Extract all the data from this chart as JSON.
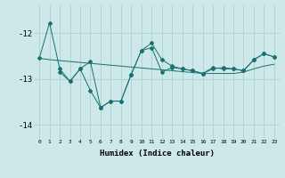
{
  "xlabel": "Humidex (Indice chaleur)",
  "xlim": [
    -0.5,
    23.5
  ],
  "ylim": [
    -14.3,
    -11.4
  ],
  "yticks": [
    -14,
    -13,
    -12
  ],
  "xticks": [
    0,
    1,
    2,
    3,
    4,
    5,
    6,
    7,
    8,
    9,
    10,
    11,
    12,
    13,
    14,
    15,
    16,
    17,
    18,
    19,
    20,
    21,
    22,
    23
  ],
  "bg_color": "#cce8e8",
  "line_color": "#1a7070",
  "grid_color": "#aacccc",
  "series1_x": [
    0,
    1,
    2,
    3,
    4,
    5,
    6,
    7,
    8,
    9,
    10,
    11,
    12,
    13,
    14,
    15,
    16,
    17,
    18,
    19,
    20,
    21,
    22,
    23
  ],
  "series1_y": [
    -12.55,
    -11.78,
    -12.78,
    -13.05,
    -12.78,
    -13.25,
    -13.62,
    -13.48,
    -13.48,
    -12.9,
    -12.38,
    -12.22,
    -12.58,
    -12.72,
    -12.78,
    -12.82,
    -12.88,
    -12.78,
    -12.75,
    -12.78,
    -12.82,
    -12.58,
    -12.45,
    -12.52
  ],
  "series2_x": [
    0,
    1,
    2,
    3,
    4,
    5,
    6,
    7,
    8,
    9,
    10,
    11,
    12,
    13,
    14,
    15,
    16,
    17,
    18,
    19,
    20,
    21,
    22,
    23
  ],
  "series2_y": [
    -12.55,
    -12.58,
    -12.6,
    -12.62,
    -12.64,
    -12.66,
    -12.68,
    -12.7,
    -12.72,
    -12.74,
    -12.76,
    -12.78,
    -12.8,
    -12.82,
    -12.84,
    -12.86,
    -12.88,
    -12.88,
    -12.88,
    -12.88,
    -12.85,
    -12.78,
    -12.72,
    -12.68
  ],
  "series3_x": [
    2,
    3,
    4,
    5,
    6,
    7,
    8,
    9,
    10,
    11,
    12,
    13,
    14,
    15,
    16,
    17,
    18,
    19,
    20,
    21,
    22,
    23
  ],
  "series3_y": [
    -12.85,
    -13.05,
    -12.78,
    -12.62,
    -13.62,
    -13.48,
    -13.48,
    -12.9,
    -12.38,
    -12.32,
    -12.85,
    -12.75,
    -12.78,
    -12.82,
    -12.88,
    -12.75,
    -12.78,
    -12.78,
    -12.82,
    -12.58,
    -12.45,
    -12.52
  ]
}
